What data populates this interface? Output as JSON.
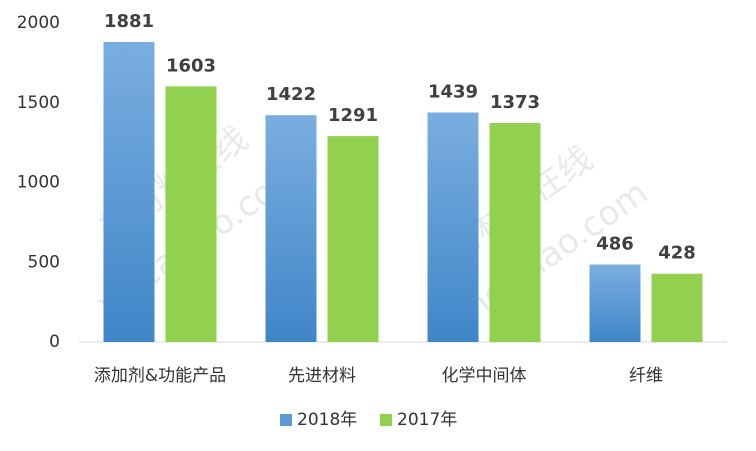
{
  "chart_data": {
    "type": "bar",
    "categories": [
      "添加剂&功能产品",
      "先进材料",
      "化学中间体",
      "纤维"
    ],
    "series": [
      {
        "name": "2018年",
        "color": "#5b9bd5",
        "values": [
          1881,
          1422,
          1439,
          486
        ]
      },
      {
        "name": "2017年",
        "color": "#92d050",
        "values": [
          1603,
          1291,
          1373,
          428
        ]
      }
    ],
    "ylim": [
      0,
      2000
    ],
    "yticks": [
      0,
      500,
      1000,
      1500,
      2000
    ],
    "legend": "bottom",
    "watermark": [
      "新材料在线",
      "xincailiao.com"
    ]
  }
}
